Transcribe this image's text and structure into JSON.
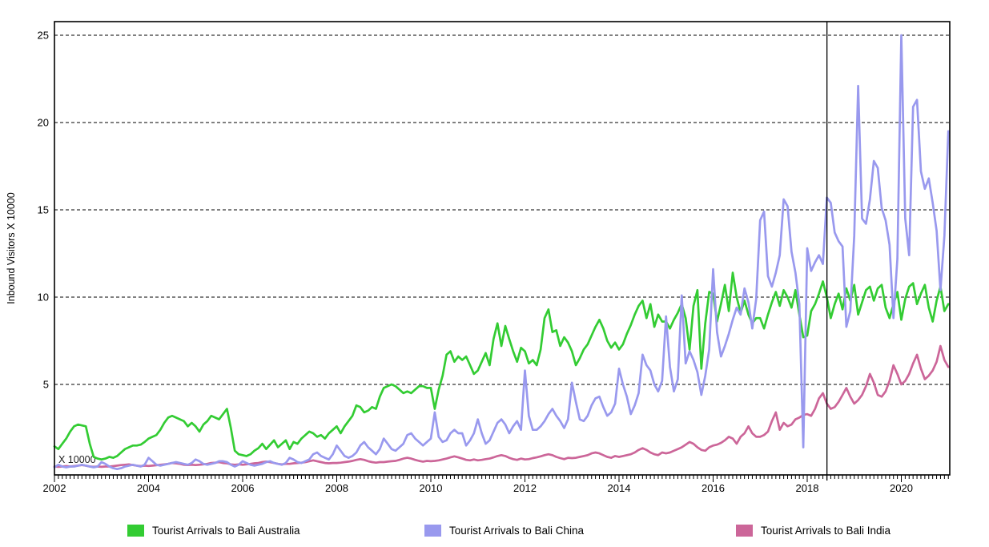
{
  "chart_data": {
    "type": "line",
    "title": "",
    "xlabel": "",
    "ylabel": "Inbound Visitors X 10000",
    "inner_annotation": "X 10000",
    "grid": "horizontal-dashed",
    "legend_position": "bottom",
    "x_start_year": 2002,
    "x_end_year": 2021.03,
    "points_per_year": 12,
    "ylim": [
      0,
      25.8
    ],
    "y_ticks": [
      5,
      10,
      15,
      20,
      25
    ],
    "x_tick_years": [
      2002,
      2004,
      2006,
      2008,
      2010,
      2012,
      2014,
      2016,
      2018,
      2020
    ],
    "marker_line_year": 2018.42,
    "axis_color": "#000000",
    "series": [
      {
        "name": "Tourist Arrivals to Bali Australia",
        "color": "#33cc33",
        "start_year": 2002,
        "step_years": 0.0833333,
        "values": [
          1.45,
          1.3,
          1.6,
          1.9,
          2.3,
          2.6,
          2.7,
          2.65,
          2.6,
          1.6,
          0.85,
          0.75,
          0.7,
          0.75,
          0.85,
          0.8,
          0.9,
          1.1,
          1.3,
          1.4,
          1.5,
          1.5,
          1.55,
          1.7,
          1.9,
          2.0,
          2.1,
          2.4,
          2.8,
          3.1,
          3.2,
          3.1,
          3.0,
          2.9,
          2.6,
          2.8,
          2.6,
          2.3,
          2.7,
          2.9,
          3.2,
          3.1,
          3.0,
          3.3,
          3.6,
          2.5,
          1.2,
          1.0,
          0.95,
          0.9,
          1.0,
          1.2,
          1.35,
          1.6,
          1.3,
          1.55,
          1.8,
          1.4,
          1.6,
          1.8,
          1.3,
          1.7,
          1.6,
          1.9,
          2.1,
          2.3,
          2.2,
          2.0,
          2.1,
          1.9,
          2.2,
          2.4,
          2.6,
          2.2,
          2.6,
          2.9,
          3.2,
          3.8,
          3.7,
          3.4,
          3.5,
          3.7,
          3.6,
          4.3,
          4.8,
          4.9,
          5.0,
          4.9,
          4.7,
          4.5,
          4.6,
          4.5,
          4.7,
          4.9,
          4.9,
          4.8,
          4.8,
          3.6,
          4.7,
          5.5,
          6.7,
          6.9,
          6.3,
          6.6,
          6.4,
          6.6,
          6.1,
          5.6,
          5.8,
          6.3,
          6.8,
          6.1,
          7.6,
          8.5,
          7.2,
          8.35,
          7.6,
          6.9,
          6.3,
          7.1,
          6.9,
          6.2,
          6.4,
          6.1,
          7.0,
          8.8,
          9.3,
          8.0,
          8.1,
          7.2,
          7.7,
          7.4,
          6.9,
          6.1,
          6.5,
          7.0,
          7.3,
          7.8,
          8.3,
          8.7,
          8.2,
          7.5,
          7.1,
          7.4,
          7.0,
          7.3,
          7.9,
          8.4,
          9.0,
          9.5,
          9.8,
          8.8,
          9.6,
          8.3,
          9.0,
          8.6,
          8.6,
          8.2,
          8.7,
          9.1,
          9.6,
          8.8,
          7.0,
          9.5,
          10.4,
          5.9,
          8.5,
          10.3,
          10.2,
          8.6,
          9.6,
          10.7,
          9.2,
          11.4,
          10.0,
          9.1,
          9.8,
          9.0,
          8.5,
          8.8,
          8.8,
          8.2,
          9.0,
          9.7,
          10.3,
          9.5,
          10.4,
          10.0,
          9.4,
          10.4,
          9.0,
          7.7,
          7.8,
          9.2,
          9.6,
          10.2,
          10.9,
          10.0,
          8.8,
          9.6,
          10.2,
          9.3,
          10.5,
          9.8,
          10.7,
          9.0,
          9.7,
          10.4,
          10.6,
          9.8,
          10.5,
          10.7,
          9.4,
          8.8,
          9.6,
          10.3,
          8.7,
          9.9,
          10.6,
          10.8,
          9.6,
          10.2,
          10.7,
          9.4,
          8.6,
          9.8,
          10.6,
          9.2,
          9.6
        ]
      },
      {
        "name": "Tourist Arrivals to Bali China",
        "color": "#9999ee",
        "start_year": 2002,
        "step_years": 0.0833333,
        "values": [
          0.25,
          0.4,
          0.3,
          0.25,
          0.3,
          0.3,
          0.35,
          0.4,
          0.35,
          0.3,
          0.25,
          0.3,
          0.55,
          0.45,
          0.3,
          0.2,
          0.15,
          0.2,
          0.3,
          0.35,
          0.4,
          0.35,
          0.3,
          0.4,
          0.8,
          0.6,
          0.4,
          0.35,
          0.4,
          0.45,
          0.5,
          0.55,
          0.5,
          0.45,
          0.4,
          0.5,
          0.7,
          0.6,
          0.45,
          0.4,
          0.45,
          0.5,
          0.6,
          0.6,
          0.55,
          0.4,
          0.3,
          0.4,
          0.6,
          0.5,
          0.4,
          0.35,
          0.4,
          0.45,
          0.55,
          0.6,
          0.5,
          0.45,
          0.4,
          0.5,
          0.8,
          0.7,
          0.55,
          0.5,
          0.6,
          0.7,
          1.0,
          1.1,
          0.9,
          0.8,
          0.7,
          1.0,
          1.5,
          1.2,
          0.9,
          0.8,
          0.9,
          1.1,
          1.5,
          1.7,
          1.4,
          1.2,
          1.0,
          1.3,
          1.9,
          1.6,
          1.3,
          1.2,
          1.4,
          1.6,
          2.1,
          2.2,
          1.9,
          1.7,
          1.5,
          1.7,
          1.9,
          3.4,
          2.0,
          1.7,
          1.8,
          2.2,
          2.4,
          2.2,
          2.2,
          1.5,
          1.8,
          2.2,
          3.0,
          2.2,
          1.6,
          1.8,
          2.3,
          2.8,
          3.0,
          2.7,
          2.2,
          2.6,
          2.9,
          2.4,
          5.8,
          3.2,
          2.4,
          2.4,
          2.6,
          2.9,
          3.3,
          3.6,
          3.2,
          2.9,
          2.5,
          3.0,
          5.1,
          4.0,
          3.0,
          2.9,
          3.2,
          3.8,
          4.2,
          4.3,
          3.7,
          3.2,
          3.4,
          3.9,
          5.9,
          5.0,
          4.3,
          3.3,
          3.8,
          4.5,
          6.7,
          6.1,
          5.8,
          5.0,
          4.6,
          5.2,
          8.9,
          6.0,
          4.6,
          5.3,
          10.1,
          6.2,
          6.9,
          6.4,
          5.7,
          4.4,
          5.5,
          7.0,
          11.6,
          8.0,
          6.6,
          7.2,
          7.9,
          8.7,
          9.4,
          9.0,
          10.5,
          9.7,
          8.2,
          9.9,
          14.4,
          14.9,
          11.2,
          10.6,
          11.4,
          12.4,
          15.6,
          15.2,
          12.6,
          11.4,
          9.6,
          1.4,
          12.8,
          11.5,
          12.0,
          12.4,
          11.9,
          15.7,
          15.4,
          13.7,
          13.2,
          12.9,
          8.3,
          9.2,
          13.5,
          22.1,
          14.5,
          14.2,
          15.6,
          17.8,
          17.4,
          15.1,
          14.4,
          13.0,
          8.8,
          12.2,
          25.0,
          14.5,
          12.4,
          20.9,
          21.3,
          17.2,
          16.2,
          16.8,
          15.4,
          13.8,
          10.4,
          13.5,
          19.5
        ]
      },
      {
        "name": "Tourist Arrivals to Bali India",
        "color": "#cc6699",
        "start_year": 2002,
        "step_years": 0.0833333,
        "values": [
          0.3,
          0.28,
          0.3,
          0.32,
          0.3,
          0.32,
          0.35,
          0.38,
          0.35,
          0.3,
          0.28,
          0.3,
          0.28,
          0.3,
          0.3,
          0.32,
          0.35,
          0.38,
          0.4,
          0.42,
          0.38,
          0.35,
          0.32,
          0.35,
          0.33,
          0.35,
          0.37,
          0.4,
          0.42,
          0.45,
          0.5,
          0.48,
          0.45,
          0.4,
          0.38,
          0.4,
          0.38,
          0.4,
          0.42,
          0.45,
          0.5,
          0.52,
          0.55,
          0.5,
          0.48,
          0.42,
          0.4,
          0.42,
          0.4,
          0.42,
          0.45,
          0.48,
          0.5,
          0.55,
          0.58,
          0.55,
          0.5,
          0.45,
          0.42,
          0.45,
          0.45,
          0.48,
          0.5,
          0.52,
          0.55,
          0.6,
          0.65,
          0.6,
          0.55,
          0.5,
          0.48,
          0.5,
          0.5,
          0.52,
          0.55,
          0.58,
          0.62,
          0.68,
          0.72,
          0.68,
          0.6,
          0.55,
          0.52,
          0.55,
          0.55,
          0.58,
          0.6,
          0.62,
          0.68,
          0.75,
          0.8,
          0.75,
          0.68,
          0.62,
          0.58,
          0.62,
          0.6,
          0.62,
          0.65,
          0.7,
          0.75,
          0.82,
          0.88,
          0.82,
          0.75,
          0.68,
          0.65,
          0.7,
          0.65,
          0.68,
          0.72,
          0.75,
          0.82,
          0.9,
          0.95,
          0.9,
          0.8,
          0.72,
          0.68,
          0.75,
          0.7,
          0.72,
          0.78,
          0.82,
          0.88,
          0.95,
          1.0,
          0.95,
          0.85,
          0.78,
          0.72,
          0.8,
          0.78,
          0.8,
          0.85,
          0.9,
          0.95,
          1.05,
          1.1,
          1.05,
          0.95,
          0.85,
          0.8,
          0.9,
          0.85,
          0.9,
          0.95,
          1.0,
          1.1,
          1.25,
          1.35,
          1.25,
          1.1,
          1.0,
          0.95,
          1.1,
          1.05,
          1.1,
          1.2,
          1.3,
          1.4,
          1.55,
          1.7,
          1.6,
          1.4,
          1.25,
          1.2,
          1.4,
          1.5,
          1.55,
          1.65,
          1.8,
          2.0,
          1.9,
          1.6,
          2.0,
          2.2,
          2.6,
          2.2,
          2.0,
          2.0,
          2.1,
          2.3,
          2.9,
          3.4,
          2.4,
          2.8,
          2.6,
          2.7,
          3.0,
          3.1,
          3.25,
          3.3,
          3.2,
          3.6,
          4.2,
          4.5,
          3.9,
          3.6,
          3.7,
          4.0,
          4.4,
          4.8,
          4.3,
          3.9,
          4.1,
          4.4,
          4.9,
          5.6,
          5.1,
          4.4,
          4.3,
          4.6,
          5.2,
          6.1,
          5.6,
          5.0,
          5.2,
          5.6,
          6.2,
          6.7,
          5.9,
          5.3,
          5.5,
          5.8,
          6.3,
          7.2,
          6.4,
          6.0
        ]
      }
    ]
  },
  "legend": {
    "items": [
      {
        "label": "Tourist Arrivals to Bali Australia",
        "color": "#33cc33"
      },
      {
        "label": "Tourist Arrivals to Bali China",
        "color": "#9999ee"
      },
      {
        "label": "Tourist Arrivals to Bali India",
        "color": "#cc6699"
      }
    ]
  }
}
